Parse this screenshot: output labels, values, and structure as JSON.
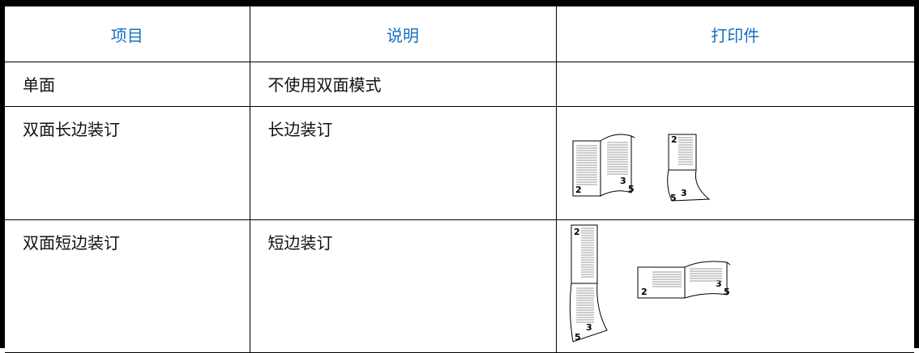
{
  "table": {
    "header": [
      "项目",
      "说明",
      "打印件"
    ],
    "rows": [
      {
        "item": "单面",
        "description": "不使用双面模式"
      },
      {
        "item": "双面长边装订",
        "description": "长边装订",
        "illustration_labels": [
          "2",
          "3",
          "5",
          "2",
          "5",
          "3"
        ]
      },
      {
        "item": "双面短边装订",
        "description": "短边装订",
        "illustration_labels": [
          "2",
          "3",
          "5",
          "2",
          "3",
          "5"
        ]
      }
    ]
  }
}
